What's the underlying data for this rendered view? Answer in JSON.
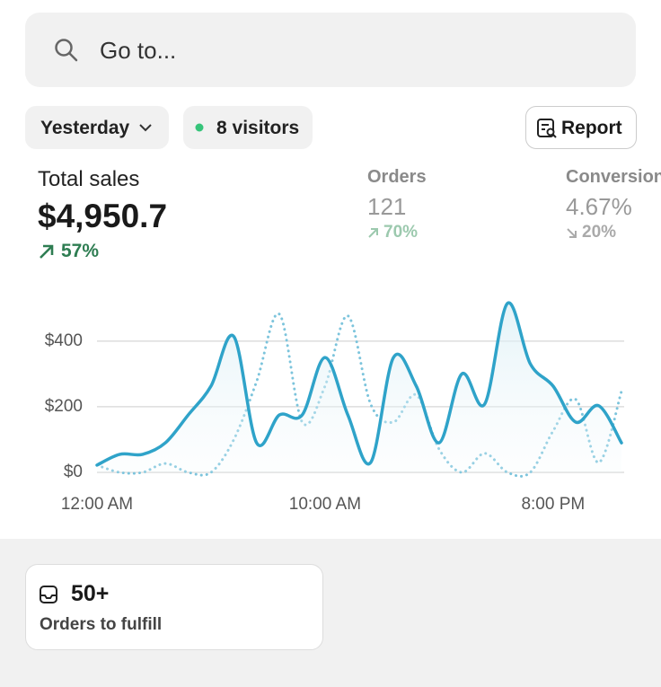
{
  "search": {
    "placeholder": "Go to..."
  },
  "filters": {
    "date": "Yesterday",
    "visitors": "8 visitors",
    "report": "Report"
  },
  "metrics": [
    {
      "label": "Total sales",
      "value": "$4,950.7",
      "change": "57%"
    },
    {
      "label": "Orders",
      "value": "121",
      "change": "70%"
    },
    {
      "label": "Conversion",
      "value": "4.67%",
      "change": "20%"
    }
  ],
  "chart_data": {
    "type": "line",
    "categories": [
      "12:00 AM",
      null,
      null,
      null,
      null,
      null,
      null,
      null,
      null,
      null,
      "10:00 AM",
      null,
      null,
      null,
      null,
      null,
      null,
      null,
      null,
      null,
      "8:00 PM",
      null,
      null,
      null
    ],
    "series": [
      {
        "color": "#2fa3c9",
        "style": "solid",
        "values": [
          22,
          55,
          55,
          90,
          175,
          263,
          414,
          90,
          175,
          175,
          350,
          175,
          30,
          350,
          263,
          90,
          300,
          208,
          515,
          331,
          263,
          153,
          203,
          90
        ]
      },
      {
        "color": "#7cc4dc",
        "style": "dotted",
        "values": [
          22,
          0,
          0,
          27,
          0,
          0,
          100,
          277,
          482,
          153,
          263,
          477,
          208,
          153,
          236,
          71,
          0,
          58,
          0,
          0,
          126,
          222,
          30,
          247
        ]
      }
    ],
    "ylim": [
      0,
      550
    ],
    "yticks": [
      {
        "value": 0,
        "label": "$0"
      },
      {
        "value": 200,
        "label": "$200"
      },
      {
        "value": 400,
        "label": "$400"
      }
    ],
    "grid": true
  },
  "cards": [
    {
      "value": "50+",
      "label": "Orders to fulfill"
    }
  ]
}
